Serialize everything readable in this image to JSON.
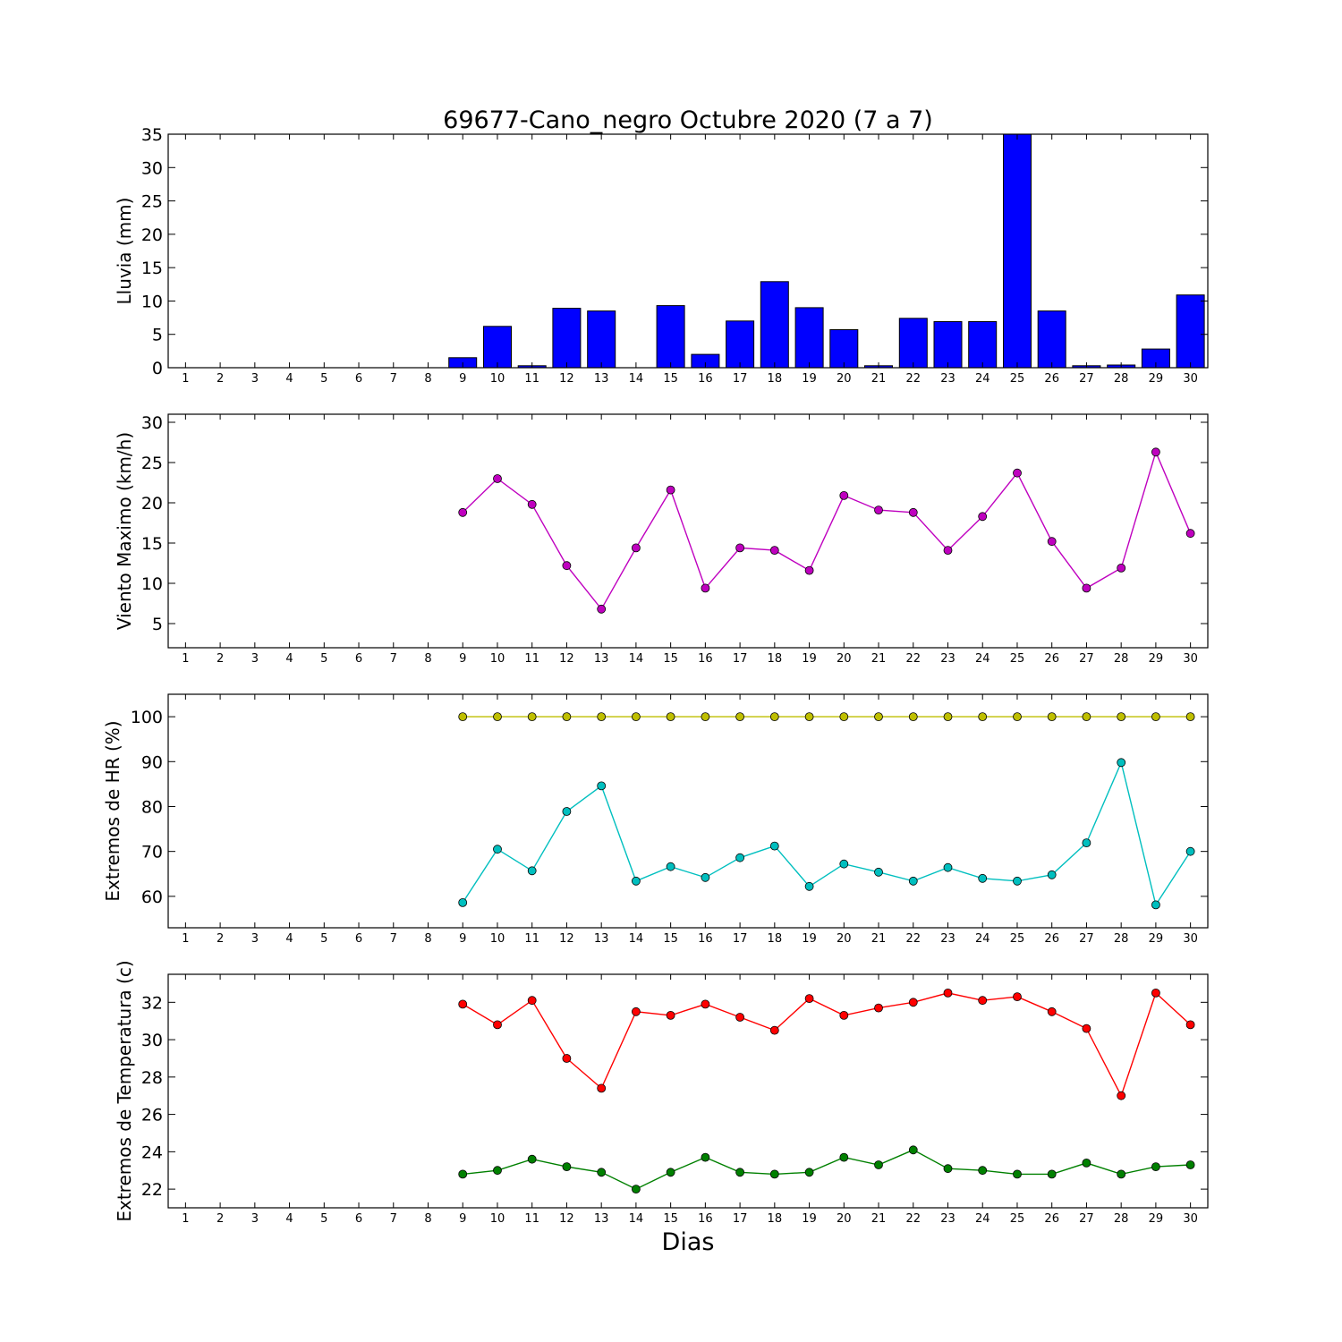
{
  "title": "69677-Cano_negro Octubre 2020  (7 a 7)",
  "xlabel": "Dias",
  "days": [
    1,
    2,
    3,
    4,
    5,
    6,
    7,
    8,
    9,
    10,
    11,
    12,
    13,
    14,
    15,
    16,
    17,
    18,
    19,
    20,
    21,
    22,
    23,
    24,
    25,
    26,
    27,
    28,
    29,
    30
  ],
  "chart_data": [
    {
      "type": "bar",
      "ylabel": "Lluvia (mm)",
      "ylim": [
        0,
        35
      ],
      "yticks": [
        0,
        5,
        10,
        15,
        20,
        25,
        30,
        35
      ],
      "xlim": [
        0.5,
        30.5
      ],
      "grid": false,
      "series": [
        {
          "color": "#0000ff",
          "x": [
            9,
            10,
            11,
            12,
            13,
            14,
            15,
            16,
            17,
            18,
            19,
            20,
            21,
            22,
            23,
            24,
            25,
            26,
            27,
            28,
            29,
            30
          ],
          "values": [
            1.5,
            6.2,
            0.3,
            8.9,
            8.5,
            0,
            9.3,
            2.0,
            7.0,
            12.9,
            9.0,
            5.7,
            0.3,
            7.4,
            6.9,
            6.9,
            35.0,
            8.5,
            0.3,
            0.4,
            2.8,
            10.9
          ]
        }
      ]
    },
    {
      "type": "line",
      "ylabel": "Viento Maximo (km/h)",
      "ylim": [
        2,
        31
      ],
      "yticks": [
        5,
        10,
        15,
        20,
        25,
        30
      ],
      "xlim": [
        0.5,
        30.5
      ],
      "grid": false,
      "series": [
        {
          "color": "#bf00bf",
          "x": [
            9,
            10,
            11,
            12,
            13,
            14,
            15,
            16,
            17,
            18,
            19,
            20,
            21,
            22,
            23,
            24,
            25,
            26,
            27,
            28,
            29,
            30
          ],
          "values": [
            18.8,
            23.0,
            19.8,
            12.2,
            6.8,
            14.4,
            21.6,
            9.4,
            14.4,
            14.1,
            11.6,
            20.9,
            19.1,
            18.8,
            14.1,
            18.3,
            23.7,
            15.2,
            9.4,
            11.9,
            26.3,
            16.2
          ]
        }
      ]
    },
    {
      "type": "line",
      "ylabel": "Extremos de HR (%)",
      "ylim": [
        53,
        105
      ],
      "yticks": [
        60,
        70,
        80,
        90,
        100
      ],
      "xlim": [
        0.5,
        30.5
      ],
      "grid": false,
      "series": [
        {
          "color": "#bfbf00",
          "x": [
            9,
            10,
            11,
            12,
            13,
            14,
            15,
            16,
            17,
            18,
            19,
            20,
            21,
            22,
            23,
            24,
            25,
            26,
            27,
            28,
            29,
            30
          ],
          "values": [
            100,
            100,
            100,
            100,
            100,
            100,
            100,
            100,
            100,
            100,
            100,
            100,
            100,
            100,
            100,
            100,
            100,
            100,
            100,
            100,
            100,
            100
          ]
        },
        {
          "color": "#00bfbf",
          "x": [
            9,
            10,
            11,
            12,
            13,
            14,
            15,
            16,
            17,
            18,
            19,
            20,
            21,
            22,
            23,
            24,
            25,
            26,
            27,
            28,
            29,
            30
          ],
          "values": [
            58.6,
            70.5,
            65.7,
            78.9,
            84.6,
            63.4,
            66.6,
            64.2,
            68.6,
            71.2,
            62.2,
            67.2,
            65.4,
            63.4,
            66.4,
            64.0,
            63.4,
            64.8,
            71.9,
            89.8,
            58.1,
            70.0
          ]
        }
      ]
    },
    {
      "type": "line",
      "ylabel": "Extremos de Temperatura (c)",
      "ylim": [
        21,
        33.5
      ],
      "yticks": [
        22,
        24,
        26,
        28,
        30,
        32
      ],
      "xlim": [
        0.5,
        30.5
      ],
      "grid": false,
      "series": [
        {
          "color": "#ff0000",
          "x": [
            9,
            10,
            11,
            12,
            13,
            14,
            15,
            16,
            17,
            18,
            19,
            20,
            21,
            22,
            23,
            24,
            25,
            26,
            27,
            28,
            29,
            30
          ],
          "values": [
            31.9,
            30.8,
            32.1,
            29.0,
            27.4,
            31.5,
            31.3,
            31.9,
            31.2,
            30.5,
            32.2,
            31.3,
            31.7,
            32.0,
            32.5,
            32.1,
            32.3,
            31.5,
            30.6,
            27.0,
            32.5,
            30.8
          ]
        },
        {
          "color": "#008000",
          "x": [
            9,
            10,
            11,
            12,
            13,
            14,
            15,
            16,
            17,
            18,
            19,
            20,
            21,
            22,
            23,
            24,
            25,
            26,
            27,
            28,
            29,
            30
          ],
          "values": [
            22.8,
            23.0,
            23.6,
            23.2,
            22.9,
            22.0,
            22.9,
            23.7,
            22.9,
            22.8,
            22.9,
            23.7,
            23.3,
            24.1,
            23.1,
            23.0,
            22.8,
            22.8,
            23.4,
            22.8,
            23.2,
            23.3
          ]
        }
      ]
    }
  ]
}
